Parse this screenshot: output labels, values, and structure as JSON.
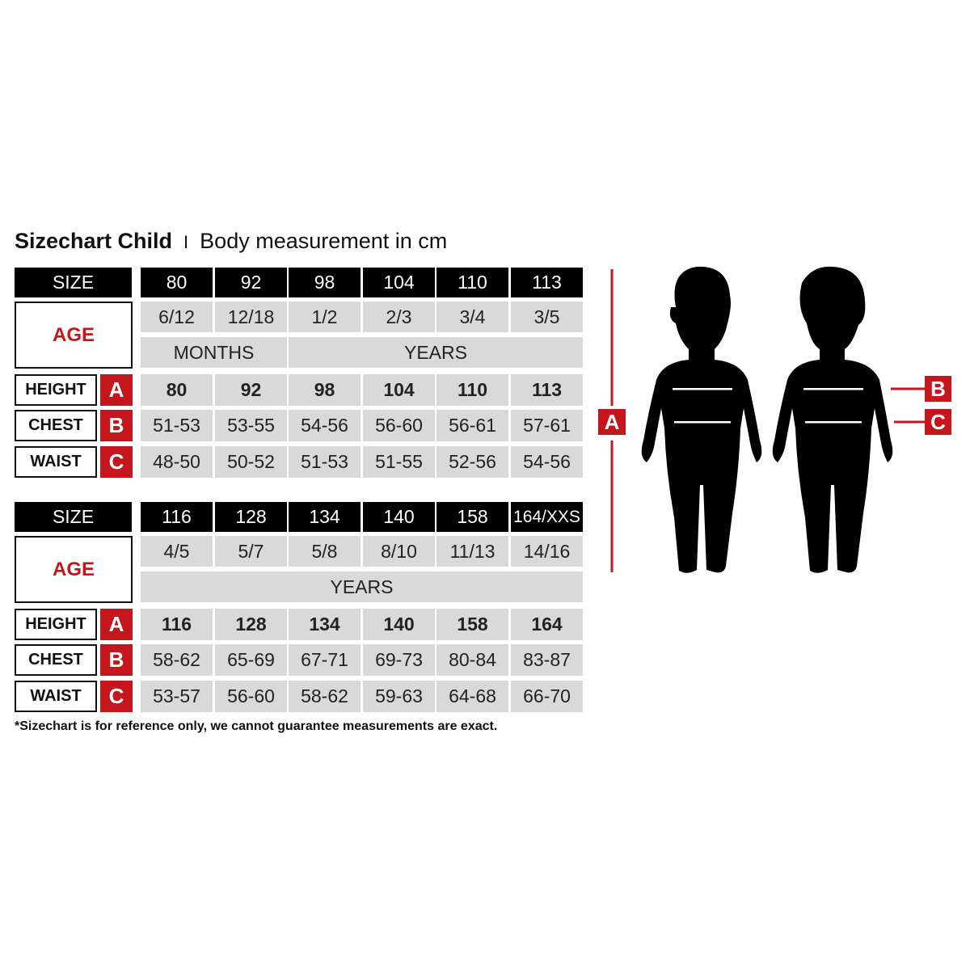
{
  "title": {
    "main": "Sizechart Child",
    "separator": "I",
    "subtitle": "Body measurement in cm"
  },
  "colors": {
    "header": "#000000",
    "cell": "#d9d9d9",
    "accent": "#c4161c"
  },
  "labels": {
    "size": "SIZE",
    "age": "AGE",
    "height": "HEIGHT",
    "chest": "CHEST",
    "waist": "WAIST",
    "a": "A",
    "b": "B",
    "c": "C"
  },
  "tables": [
    {
      "sizes": [
        "80",
        "92",
        "98",
        "104",
        "110",
        "113"
      ],
      "ages": [
        "6/12",
        "12/18",
        "1/2",
        "2/3",
        "3/4",
        "3/5"
      ],
      "age_units": [
        {
          "label": "MONTHS",
          "span": 2
        },
        {
          "label": "YEARS",
          "span": 4
        }
      ],
      "height": [
        "80",
        "92",
        "98",
        "104",
        "110",
        "113"
      ],
      "chest": [
        "51-53",
        "53-55",
        "54-56",
        "56-60",
        "56-61",
        "57-61"
      ],
      "waist": [
        "48-50",
        "50-52",
        "51-53",
        "51-55",
        "52-56",
        "54-56"
      ]
    },
    {
      "sizes": [
        "116",
        "128",
        "134",
        "140",
        "158",
        "164/XXS"
      ],
      "ages": [
        "4/5",
        "5/7",
        "5/8",
        "8/10",
        "11/13",
        "14/16"
      ],
      "age_units": [
        {
          "label": "YEARS",
          "span": 6
        }
      ],
      "height": [
        "116",
        "128",
        "134",
        "140",
        "158",
        "164"
      ],
      "chest": [
        "58-62",
        "65-69",
        "67-71",
        "69-73",
        "80-84",
        "83-87"
      ],
      "waist": [
        "53-57",
        "56-60",
        "58-62",
        "59-63",
        "64-68",
        "66-70"
      ]
    }
  ],
  "figure": {
    "height_marker": "A",
    "chest_marker": "B",
    "waist_marker": "C"
  },
  "footnote": "*Sizechart is for reference only, we cannot guarantee measurements are exact."
}
